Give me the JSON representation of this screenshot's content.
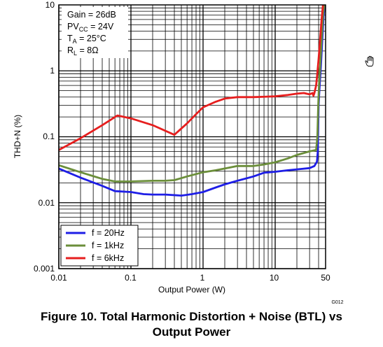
{
  "figure": {
    "code": "G012",
    "caption_line1": "Figure 10. Total Harmonic Distortion + Noise (BTL) vs",
    "caption_line2": "Output Power"
  },
  "conditions": [
    {
      "main": "Gain = 26dB",
      "sub": "",
      "tail": ""
    },
    {
      "main": "PV",
      "sub": "CC",
      "tail": " = 24V"
    },
    {
      "main": "T",
      "sub": "A",
      "tail": " = 25°C"
    },
    {
      "main": "R",
      "sub": "L",
      "tail": " = 8Ω"
    }
  ],
  "chart_data": {
    "type": "line",
    "xlabel": "Output Power (W)",
    "ylabel": "THD+N (%)",
    "x_scale": "log",
    "y_scale": "log",
    "xlim": [
      0.01,
      50
    ],
    "ylim": [
      0.001,
      10
    ],
    "x_ticks": [
      0.01,
      0.1,
      1,
      10,
      50
    ],
    "x_tick_labels": [
      "0.01",
      "0.1",
      "1",
      "10",
      "50"
    ],
    "y_ticks": [
      0.001,
      0.01,
      0.1,
      1,
      10
    ],
    "y_tick_labels": [
      "0.001",
      "0.01",
      "0.1",
      "1",
      "10"
    ],
    "grid": true,
    "legend_position": "bottom-left",
    "series": [
      {
        "name": "f = 20Hz",
        "color": "#1e1ee6",
        "points": [
          [
            0.01,
            0.033
          ],
          [
            0.02,
            0.024
          ],
          [
            0.04,
            0.018
          ],
          [
            0.06,
            0.015
          ],
          [
            0.1,
            0.0145
          ],
          [
            0.15,
            0.0135
          ],
          [
            0.2,
            0.0133
          ],
          [
            0.3,
            0.0133
          ],
          [
            0.5,
            0.0128
          ],
          [
            0.7,
            0.0135
          ],
          [
            1,
            0.0145
          ],
          [
            1.5,
            0.017
          ],
          [
            2,
            0.019
          ],
          [
            3,
            0.0215
          ],
          [
            5,
            0.025
          ],
          [
            7,
            0.0285
          ],
          [
            10,
            0.0295
          ],
          [
            15,
            0.031
          ],
          [
            20,
            0.032
          ],
          [
            30,
            0.0335
          ],
          [
            35,
            0.036
          ],
          [
            38,
            0.042
          ],
          [
            39,
            0.06
          ],
          [
            40,
            0.3
          ],
          [
            41,
            0.5
          ],
          [
            43,
            1.2
          ],
          [
            45,
            3
          ],
          [
            47,
            7
          ],
          [
            49,
            10
          ]
        ]
      },
      {
        "name": "f = 1kHz",
        "color": "#6b8e3a",
        "points": [
          [
            0.01,
            0.037
          ],
          [
            0.02,
            0.029
          ],
          [
            0.04,
            0.023
          ],
          [
            0.06,
            0.021
          ],
          [
            0.1,
            0.021
          ],
          [
            0.2,
            0.0215
          ],
          [
            0.3,
            0.0215
          ],
          [
            0.4,
            0.022
          ],
          [
            0.6,
            0.025
          ],
          [
            1,
            0.029
          ],
          [
            1.5,
            0.031
          ],
          [
            2,
            0.033
          ],
          [
            3,
            0.036
          ],
          [
            5,
            0.036
          ],
          [
            7,
            0.038
          ],
          [
            10,
            0.041
          ],
          [
            15,
            0.047
          ],
          [
            20,
            0.053
          ],
          [
            30,
            0.06
          ],
          [
            37,
            0.063
          ],
          [
            38.5,
            0.1
          ],
          [
            39.5,
            0.3
          ],
          [
            40.5,
            0.6
          ],
          [
            42,
            1.2
          ],
          [
            44,
            3
          ],
          [
            46,
            7
          ],
          [
            48,
            10
          ]
        ]
      },
      {
        "name": "f = 6kHz",
        "color": "#e61e1e",
        "points": [
          [
            0.01,
            0.063
          ],
          [
            0.02,
            0.095
          ],
          [
            0.04,
            0.15
          ],
          [
            0.065,
            0.21
          ],
          [
            0.1,
            0.19
          ],
          [
            0.2,
            0.15
          ],
          [
            0.4,
            0.107
          ],
          [
            0.6,
            0.16
          ],
          [
            0.8,
            0.22
          ],
          [
            1,
            0.28
          ],
          [
            1.5,
            0.34
          ],
          [
            2,
            0.38
          ],
          [
            3,
            0.4
          ],
          [
            5,
            0.4
          ],
          [
            10,
            0.41
          ],
          [
            15,
            0.43
          ],
          [
            20,
            0.45
          ],
          [
            25,
            0.46
          ],
          [
            30,
            0.44
          ],
          [
            33,
            0.46
          ],
          [
            34,
            0.42
          ],
          [
            35,
            0.46
          ],
          [
            37,
            0.6
          ],
          [
            38,
            0.8
          ],
          [
            40,
            1.5
          ],
          [
            42,
            3
          ],
          [
            44,
            6
          ],
          [
            46,
            10
          ]
        ]
      }
    ]
  }
}
